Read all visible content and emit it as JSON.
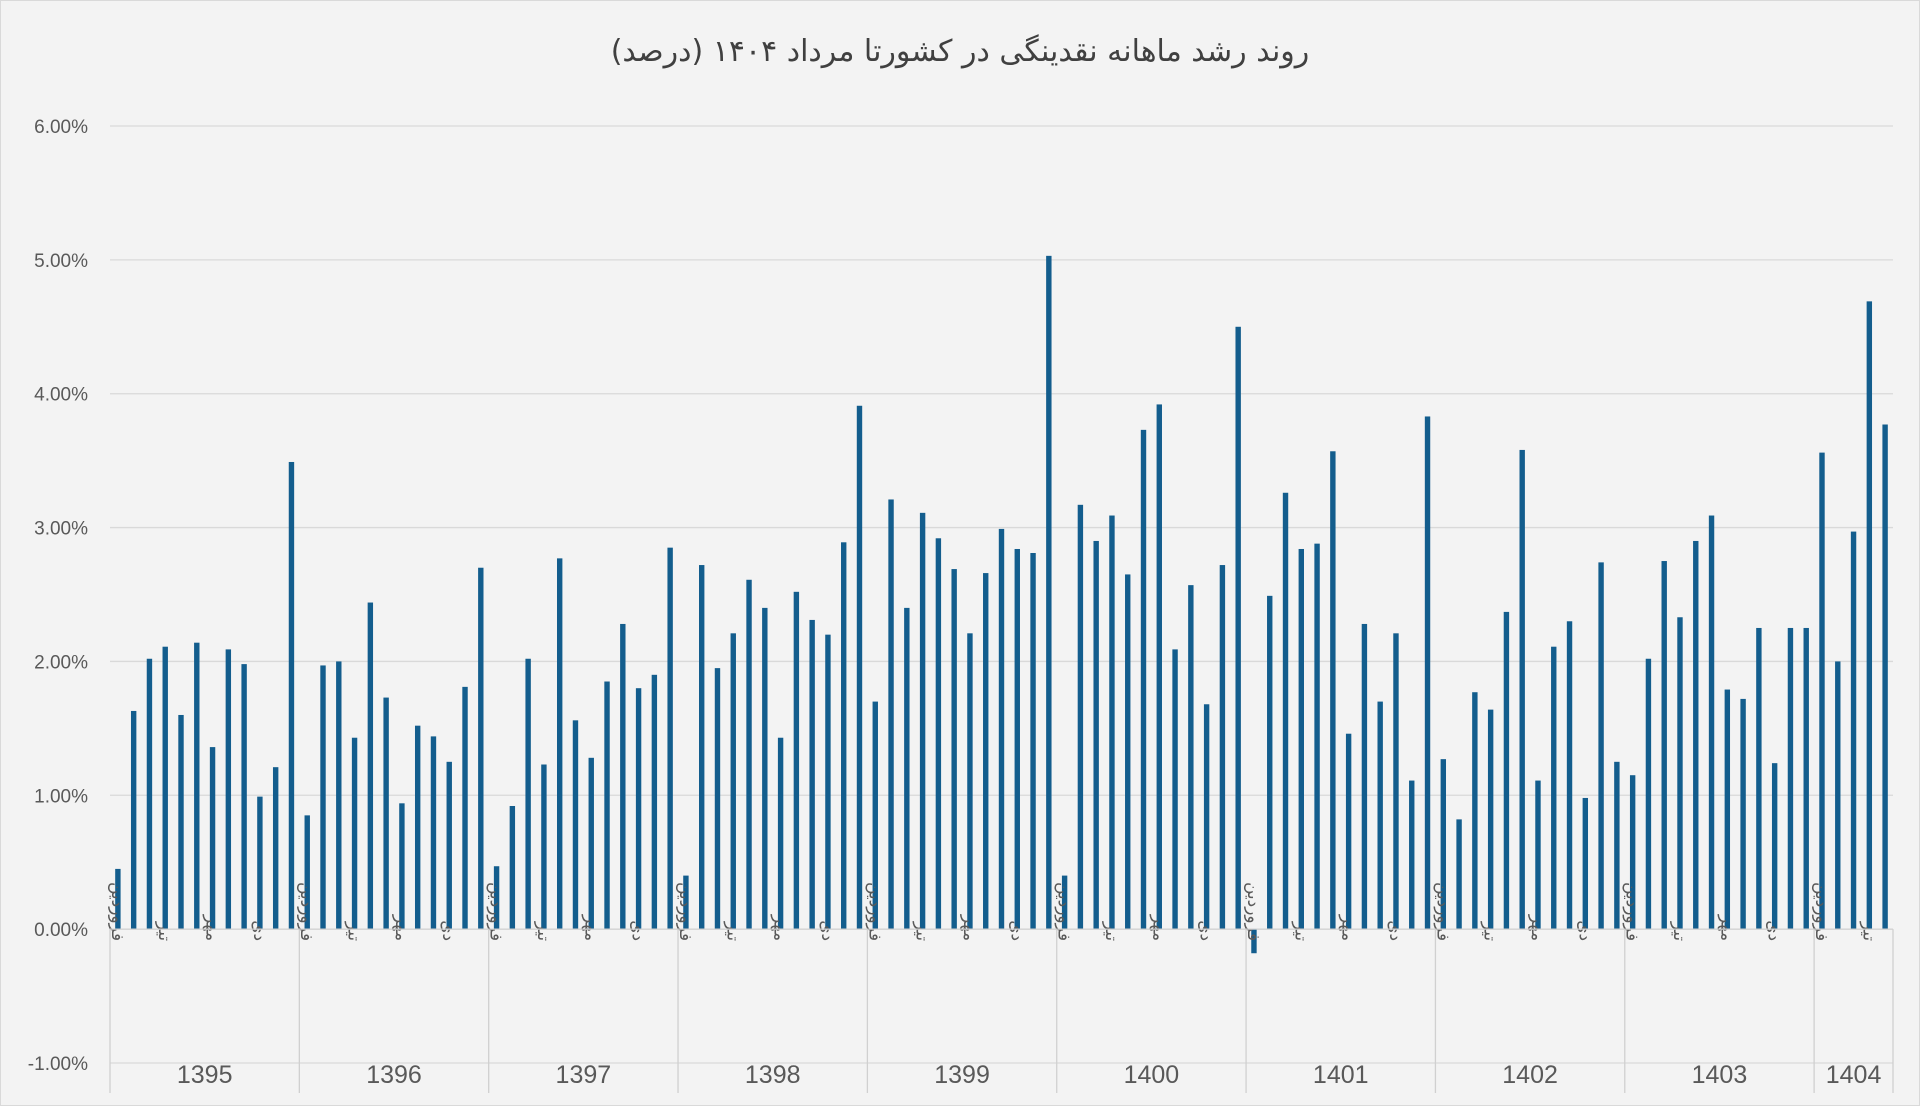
{
  "chart_data": {
    "type": "bar",
    "title": "روند رشد ماهانه نقدینگی در کشورتا مرداد ۱۴۰۴ (درصد)",
    "xlabel": "",
    "ylabel": "",
    "ylim": [
      -0.01,
      0.06
    ],
    "yticks": [
      -0.01,
      0,
      0.01,
      0.02,
      0.03,
      0.04,
      0.05,
      0.06
    ],
    "ytick_labels": [
      "-1.00%",
      "0.00%",
      "1.00%",
      "2.00%",
      "3.00%",
      "4.00%",
      "5.00%",
      "6.00%"
    ],
    "grid": true,
    "legend": "none",
    "bar_color": "#135d8d",
    "month_tick_labels": [
      "فروردین",
      "تیر",
      "مهر",
      "دی"
    ],
    "years": [
      {
        "year": "1395",
        "values": [
          0.45,
          1.63,
          2.02,
          2.11,
          1.6,
          2.14,
          1.36,
          2.09,
          1.98,
          0.99,
          1.21,
          3.49
        ]
      },
      {
        "year": "1396",
        "values": [
          0.85,
          1.97,
          2.0,
          1.43,
          2.44,
          1.73,
          0.94,
          1.52,
          1.44,
          1.25,
          1.81,
          2.7
        ]
      },
      {
        "year": "1397",
        "values": [
          0.47,
          0.92,
          2.02,
          1.23,
          2.77,
          1.56,
          1.28,
          1.85,
          2.28,
          1.8,
          1.9,
          2.85
        ]
      },
      {
        "year": "1398",
        "values": [
          0.4,
          2.72,
          1.95,
          2.21,
          2.61,
          2.4,
          1.43,
          2.52,
          2.31,
          2.2,
          2.89,
          3.91
        ]
      },
      {
        "year": "1399",
        "values": [
          1.7,
          3.21,
          2.4,
          3.11,
          2.92,
          2.69,
          2.21,
          2.66,
          2.99,
          2.84,
          2.81,
          5.03
        ]
      },
      {
        "year": "1400",
        "values": [
          0.4,
          3.17,
          2.9,
          3.09,
          2.65,
          3.73,
          3.92,
          2.09,
          2.57,
          1.68,
          2.72,
          4.5
        ]
      },
      {
        "year": "1401",
        "values": [
          -0.18,
          2.49,
          3.26,
          2.84,
          2.88,
          3.57,
          1.46,
          2.28,
          1.7,
          2.21,
          1.11,
          3.83
        ]
      },
      {
        "year": "1402",
        "values": [
          1.27,
          0.82,
          1.77,
          1.64,
          2.37,
          3.58,
          1.11,
          2.11,
          2.3,
          0.98,
          2.74,
          1.25
        ]
      },
      {
        "year": "1403",
        "values": [
          1.15,
          2.02,
          2.75,
          2.33,
          2.9,
          3.09,
          1.79,
          1.72,
          2.25,
          1.24,
          2.25,
          2.25
        ]
      },
      {
        "year": "1404",
        "values": [
          3.56,
          2.0,
          2.97,
          4.69,
          3.77
        ]
      }
    ],
    "value_unit": "%"
  }
}
